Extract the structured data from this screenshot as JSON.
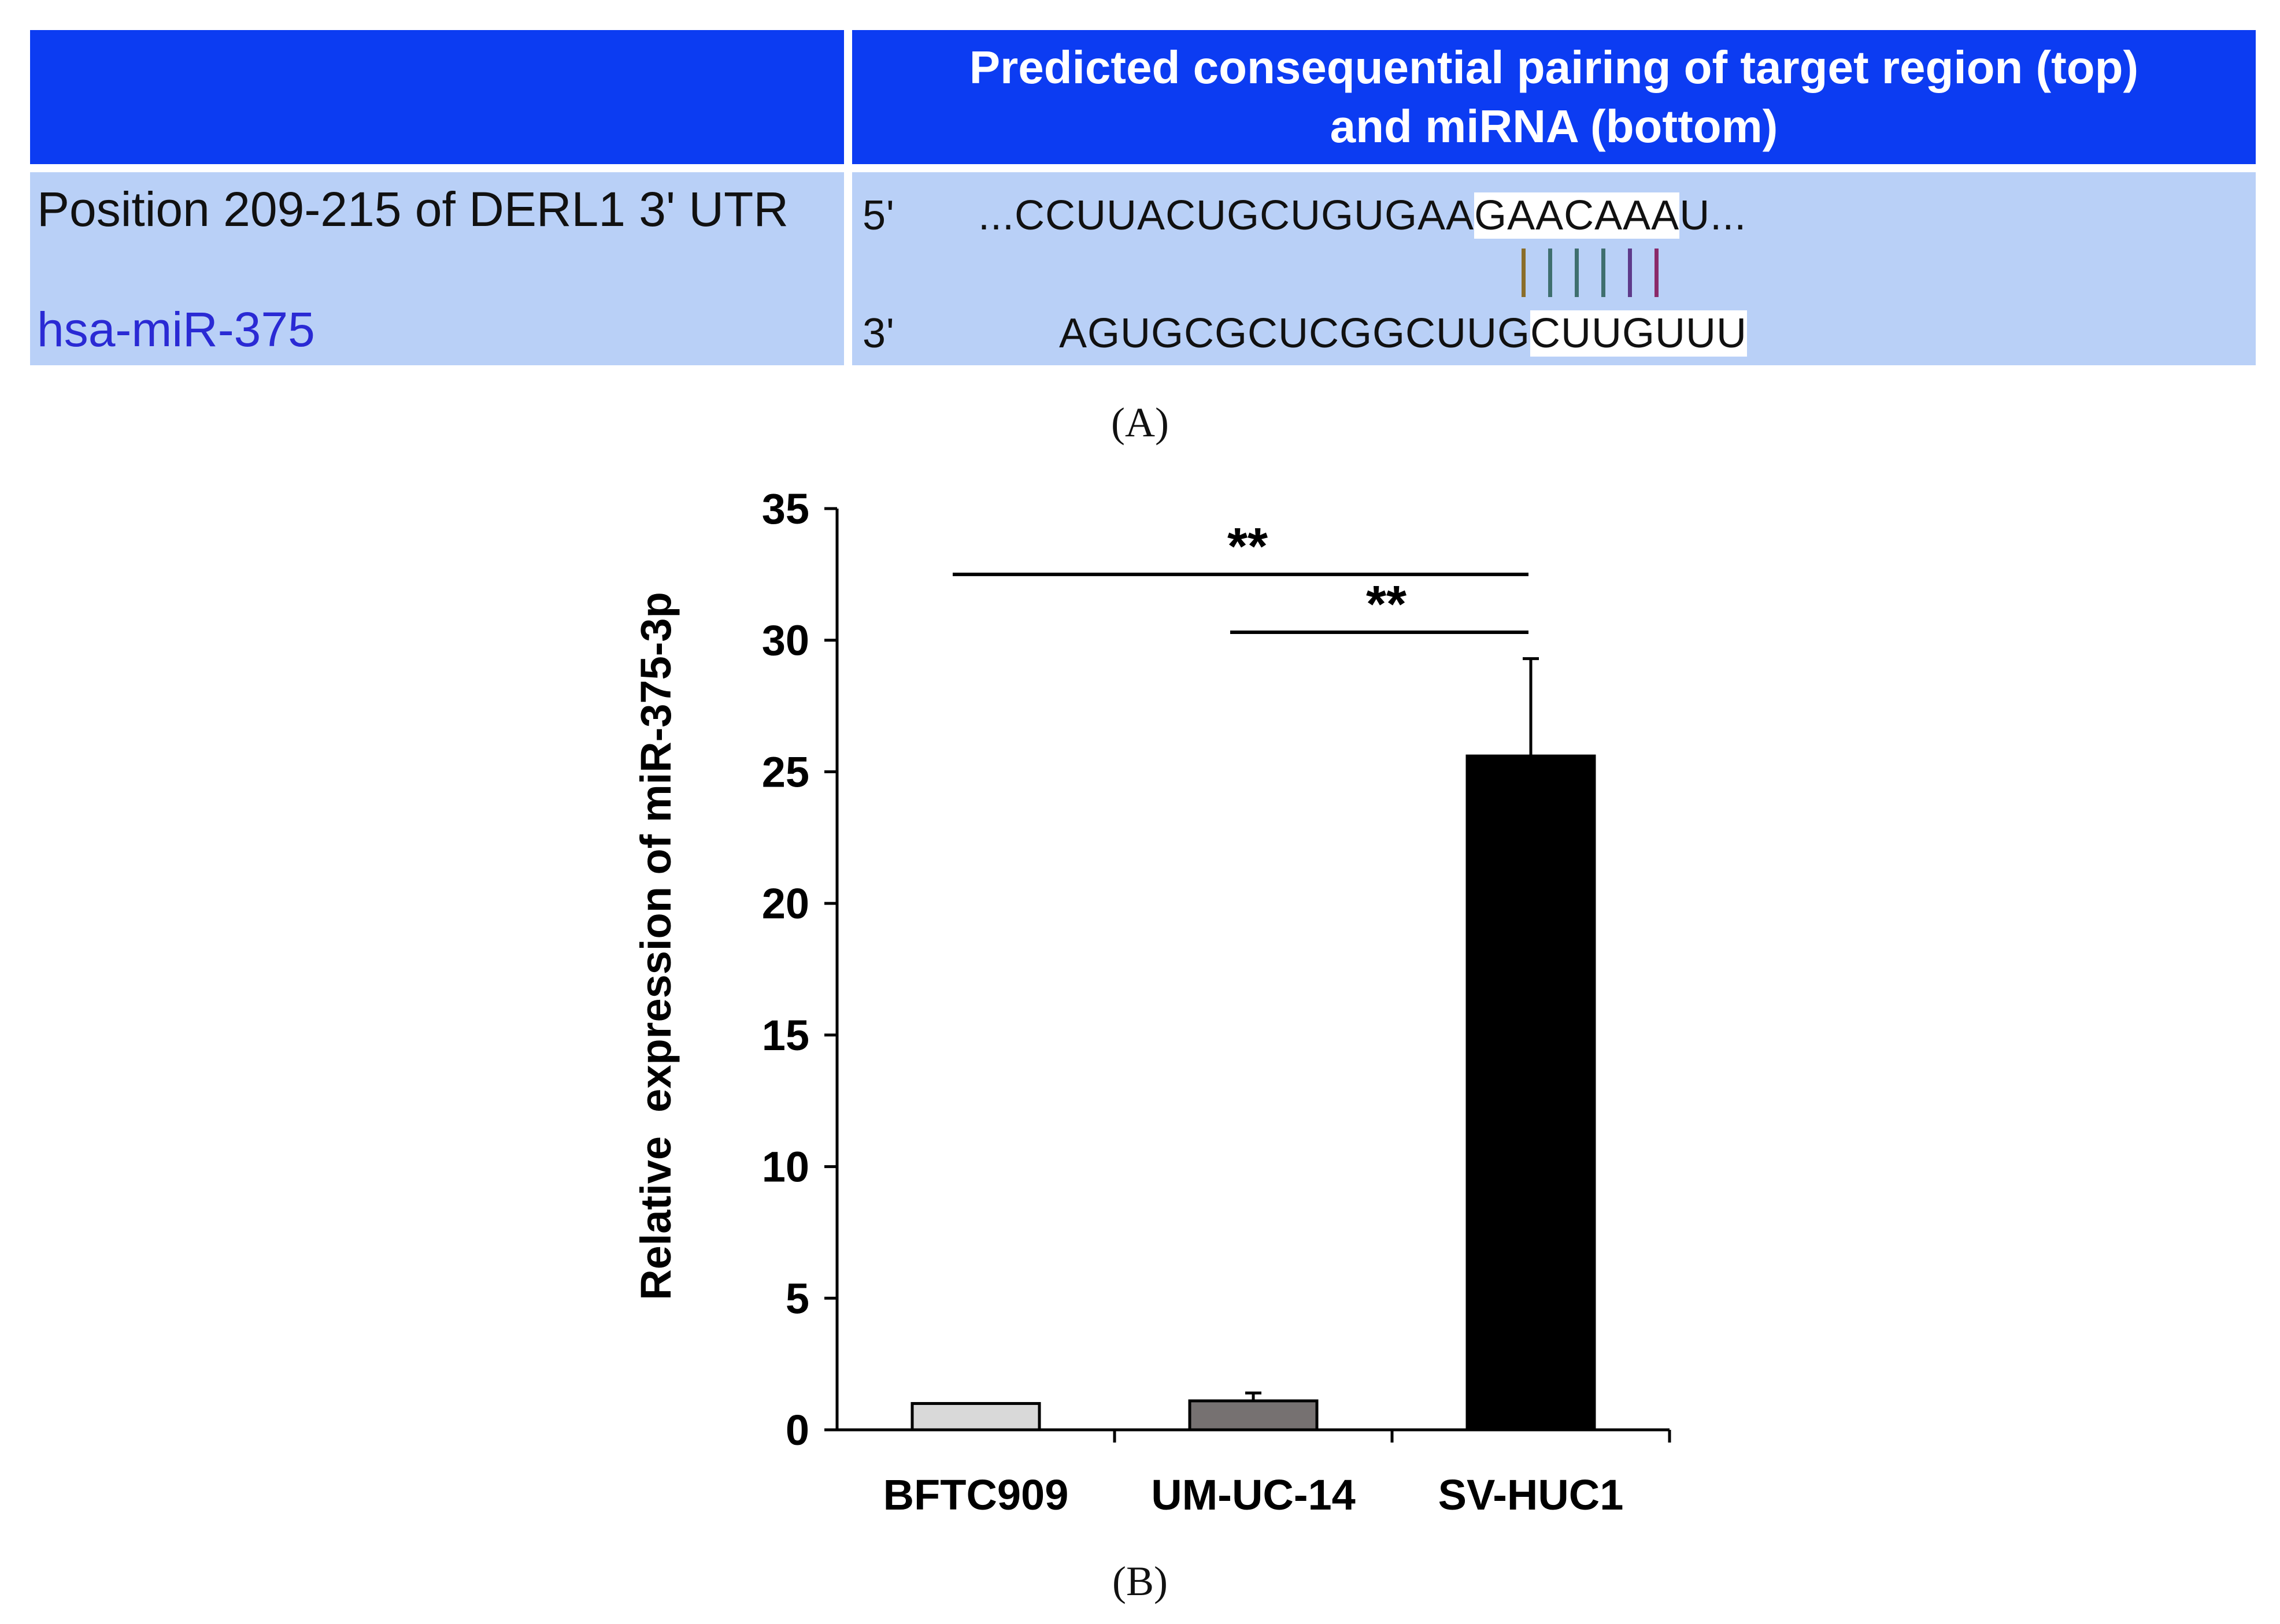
{
  "panel_a": {
    "header_text": "Predicted consequential pairing of target region (top) and miRNA (bottom)",
    "header_line1": "Predicted consequential pairing of target region (top)",
    "header_line2": "and miRNA (bottom)",
    "target_label": "Position 209-215 of DERL1 3' UTR",
    "mirna_label": "hsa-miR-375",
    "target_end": "5'",
    "mirna_end": "3'",
    "target_seq_prefix": "...CCUUACUGCUGUGAA",
    "target_seq_seed": "GAACAAA",
    "target_seq_suffix": "U...",
    "mirna_seq_prefix": "AGUGCGCUCGGCUUG",
    "mirna_seq_seed": "CUUGUUU",
    "pair_colors": [
      "#8a6d2a",
      "#3f6f6f",
      "#3f6f6f",
      "#3f6f6f",
      "#5e3a8a",
      "#8a2a6a"
    ],
    "panel_label": "(A)"
  },
  "panel_b": {
    "panel_label": "(B)"
  },
  "chart_data": {
    "type": "bar",
    "categories": [
      "BFTC909",
      "UM-UC-14",
      "SV-HUC1"
    ],
    "values": [
      1.0,
      1.1,
      25.6
    ],
    "errors": [
      0,
      0.3,
      3.7
    ],
    "bar_colors": [
      "#d9d9d9",
      "#767171",
      "#000000"
    ],
    "ylabel": "Relative  expression of miR-375-3p",
    "ylim": [
      0,
      35
    ],
    "yticks": [
      0,
      5,
      10,
      15,
      20,
      25,
      30,
      35
    ],
    "grid": false,
    "significance": [
      {
        "from": "BFTC909",
        "to": "SV-HUC1",
        "label": "**",
        "y": 32.5
      },
      {
        "from": "UM-UC-14",
        "to": "SV-HUC1",
        "label": "**",
        "y": 30.3
      }
    ]
  }
}
